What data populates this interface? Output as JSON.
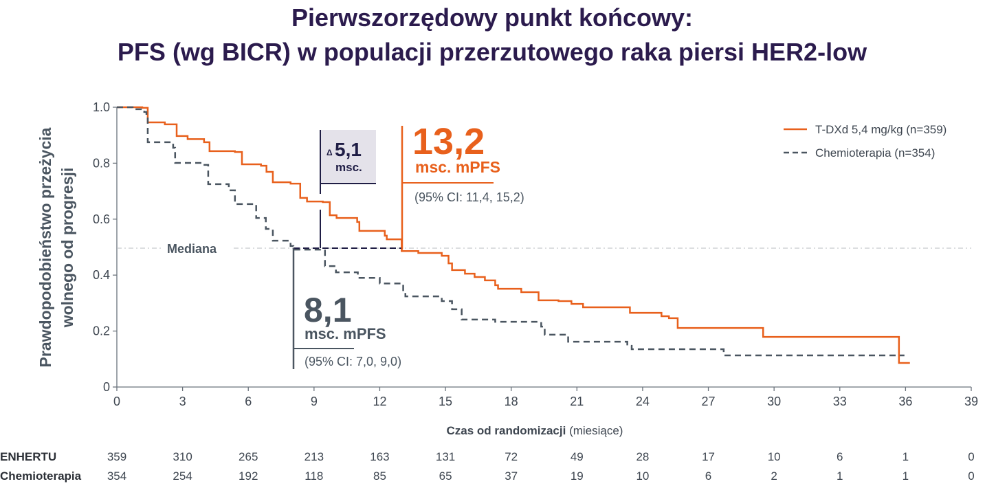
{
  "title_line1": "Pierwszorzędowy punkt końcowy:",
  "title_line2": "PFS (wg BICR) w populacji przerzutowego raka piersi HER2-low",
  "colors": {
    "tdxd": "#e8601c",
    "chemo": "#4a5560",
    "title": "#2b1b4d",
    "delta_box": "#e4e2ea",
    "delta_text": "#1f1d45"
  },
  "annotations": {
    "median_label": "Mediana",
    "tdxd_value": "13,2",
    "tdxd_unit": "msc. mPFS",
    "tdxd_ci": "(95% CI: 11,4, 15,2)",
    "chemo_value": "8,1",
    "chemo_unit": "msc. mPFS",
    "chemo_ci": "(95% CI: 7,0, 9,0)",
    "delta_symbol": "Δ",
    "delta_value": "5,1",
    "delta_unit": "msc."
  },
  "risk_table": {
    "rows": [
      {
        "label": "ENHERTU",
        "values": [
          "359",
          "310",
          "265",
          "213",
          "163",
          "131",
          "72",
          "49",
          "28",
          "17",
          "10",
          "6",
          "1",
          "0"
        ]
      },
      {
        "label": "Chemioterapia",
        "values": [
          "354",
          "254",
          "192",
          "118",
          "85",
          "65",
          "37",
          "19",
          "10",
          "6",
          "2",
          "1",
          "1",
          "0"
        ]
      }
    ]
  },
  "chart_data": {
    "type": "line",
    "title": "PFS (wg BICR) w populacji przerzutowego raka piersi HER2-low",
    "xlabel_bold": "Czas od randomizacji",
    "xlabel_rest": " (miesiące)",
    "ylabel_line1": "Prawdopodobieństwo przeżycia",
    "ylabel_line2": "wolnego od progresji",
    "xlim": [
      0,
      39
    ],
    "ylim": [
      0,
      1
    ],
    "xticks": [
      "0",
      "3",
      "6",
      "9",
      "12",
      "15",
      "18",
      "21",
      "24",
      "27",
      "30",
      "33",
      "36",
      "39"
    ],
    "xtick_values": [
      0,
      3,
      6,
      9,
      12,
      15,
      18,
      21,
      24,
      27,
      30,
      33,
      36,
      39
    ],
    "yticks": [
      "0",
      "0.2",
      "0.4",
      "0.6",
      "0.8",
      "1.0"
    ],
    "ytick_values": [
      0,
      0.2,
      0.4,
      0.6,
      0.8,
      1.0
    ],
    "median_level": 0.5,
    "legend_position": "top-right",
    "series": [
      {
        "name": "T-DXd 5,4 mg/kg (n=359)",
        "style": "solid",
        "median": 13.2,
        "points": [
          [
            0,
            1
          ],
          [
            1.16,
            0.998
          ],
          [
            1.41,
            0.946
          ],
          [
            2.19,
            0.939
          ],
          [
            2.73,
            0.936
          ],
          [
            2.73,
            0.897
          ],
          [
            3.23,
            0.886
          ],
          [
            3.98,
            0.875
          ],
          [
            4.23,
            0.843
          ],
          [
            5.39,
            0.84
          ],
          [
            5.71,
            0.796
          ],
          [
            6.58,
            0.791
          ],
          [
            6.83,
            0.769
          ],
          [
            7.12,
            0.732
          ],
          [
            7.93,
            0.727
          ],
          [
            8.37,
            0.676
          ],
          [
            8.68,
            0.663
          ],
          [
            9.4,
            0.661
          ],
          [
            9.72,
            0.614
          ],
          [
            10.03,
            0.604
          ],
          [
            10.97,
            0.59
          ],
          [
            11.07,
            0.558
          ],
          [
            12.23,
            0.541
          ],
          [
            12.32,
            0.528
          ],
          [
            13.0,
            0.528
          ],
          [
            13.0,
            0.486
          ],
          [
            13.76,
            0.479
          ],
          [
            14.83,
            0.469
          ],
          [
            15.14,
            0.442
          ],
          [
            15.3,
            0.418
          ],
          [
            15.89,
            0.405
          ],
          [
            16.33,
            0.393
          ],
          [
            16.8,
            0.381
          ],
          [
            17.27,
            0.364
          ],
          [
            17.4,
            0.351
          ],
          [
            18.46,
            0.339
          ],
          [
            19.25,
            0.31
          ],
          [
            20.16,
            0.307
          ],
          [
            20.75,
            0.297
          ],
          [
            21.28,
            0.285
          ],
          [
            23.42,
            0.265
          ],
          [
            24.86,
            0.253
          ],
          [
            25.2,
            0.246
          ],
          [
            25.6,
            0.211
          ],
          [
            29.5,
            0.179
          ],
          [
            35.7,
            0.179
          ],
          [
            35.7,
            0.086
          ],
          [
            36.2,
            0.086
          ]
        ]
      },
      {
        "name": "Chemioterapia (n=354)",
        "style": "dashed",
        "median": 8.1,
        "points": [
          [
            0,
            1
          ],
          [
            0.72,
            0.993
          ],
          [
            1.25,
            0.983
          ],
          [
            1.35,
            0.966
          ],
          [
            1.41,
            0.875
          ],
          [
            2.57,
            0.855
          ],
          [
            2.66,
            0.801
          ],
          [
            3.86,
            0.794
          ],
          [
            4.17,
            0.725
          ],
          [
            5.11,
            0.703
          ],
          [
            5.39,
            0.654
          ],
          [
            6.36,
            0.604
          ],
          [
            6.8,
            0.565
          ],
          [
            7.12,
            0.523
          ],
          [
            7.93,
            0.504
          ],
          [
            8.06,
            0.491
          ],
          [
            9.5,
            0.432
          ],
          [
            10,
            0.41
          ],
          [
            11,
            0.39
          ],
          [
            12,
            0.37
          ],
          [
            13.07,
            0.346
          ],
          [
            13.17,
            0.324
          ],
          [
            14.83,
            0.307
          ],
          [
            15.3,
            0.278
          ],
          [
            15.74,
            0.241
          ],
          [
            17.27,
            0.233
          ],
          [
            19.37,
            0.216
          ],
          [
            19.53,
            0.187
          ],
          [
            20.6,
            0.162
          ],
          [
            23.3,
            0.147
          ],
          [
            23.5,
            0.135
          ],
          [
            27.7,
            0.123
          ],
          [
            27.7,
            0.113
          ],
          [
            35.95,
            0.113
          ]
        ]
      }
    ]
  }
}
